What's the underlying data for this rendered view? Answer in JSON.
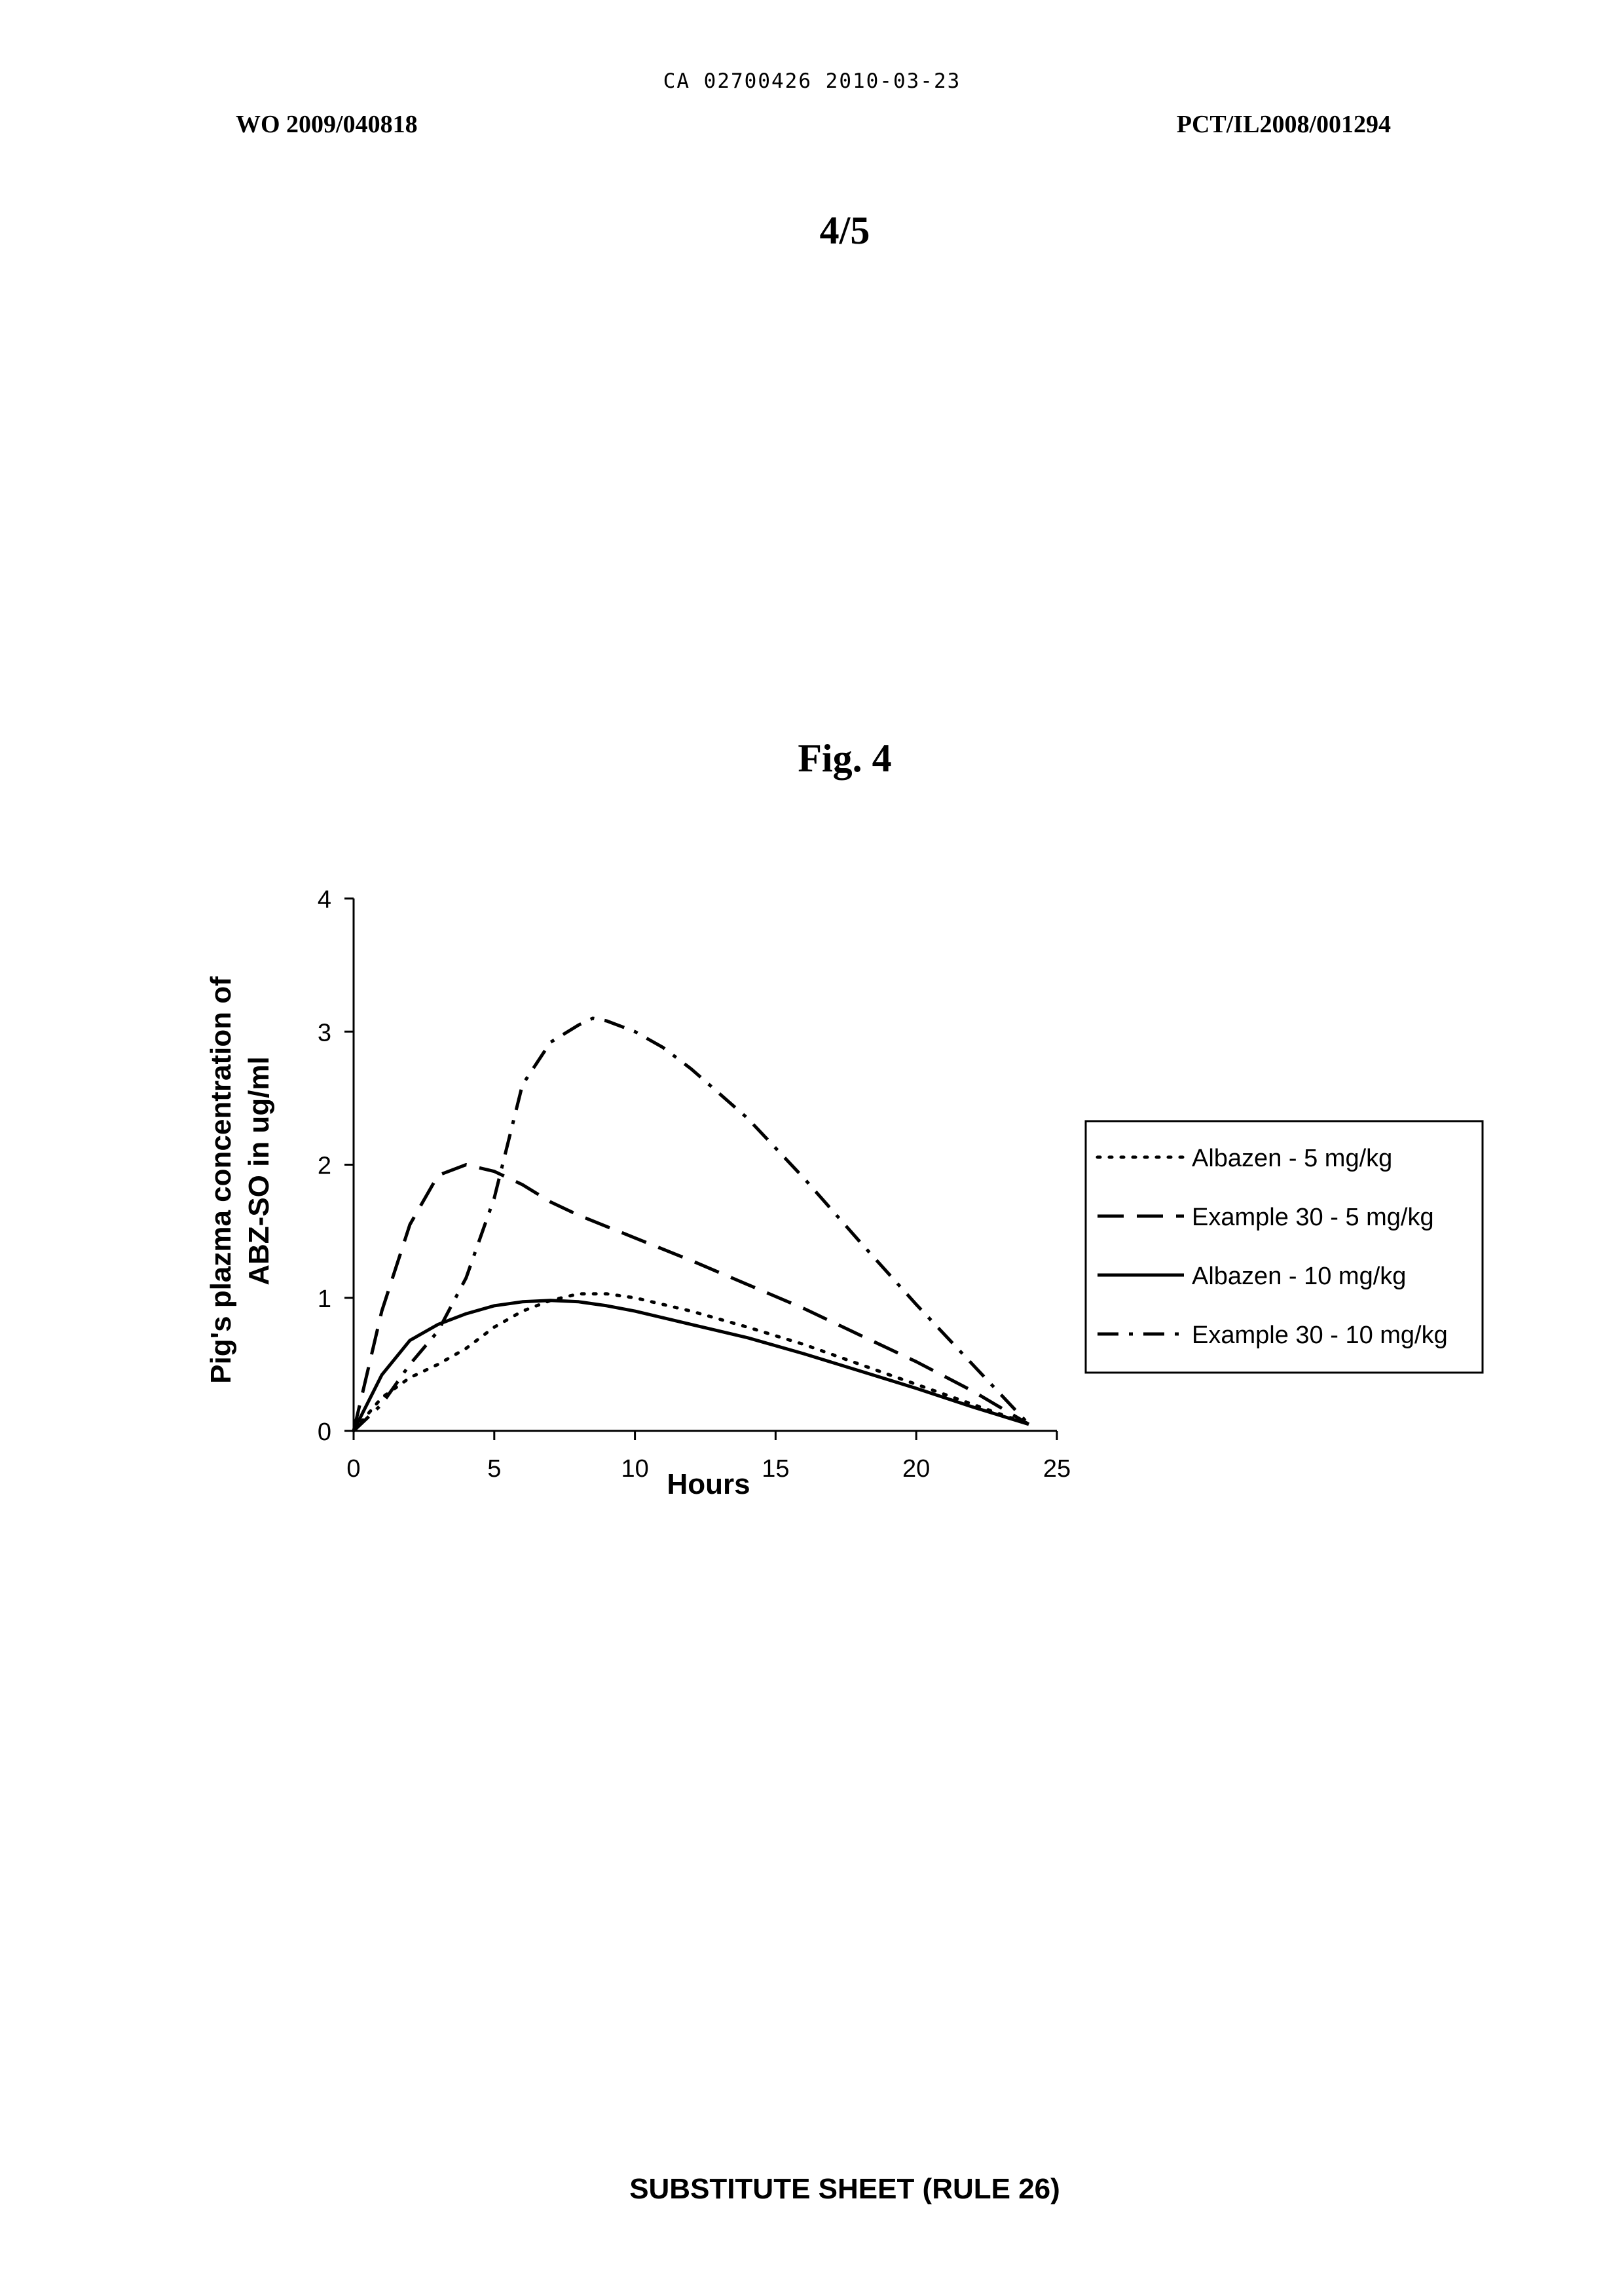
{
  "header": {
    "ca_number": "CA 02700426 2010-03-23",
    "wo_number": "WO 2009/040818",
    "pct_number": "PCT/IL2008/001294",
    "sheet_number": "4/5"
  },
  "figure": {
    "title": "Fig. 4"
  },
  "footer": {
    "text": "SUBSTITUTE SHEET (RULE 26)"
  },
  "colors": {
    "ink": "#000000",
    "paper": "#ffffff"
  },
  "chart_data": {
    "type": "line",
    "title": "",
    "xlabel": "Hours",
    "ylabel_lines": [
      "Pig's plazma concentration of",
      "ABZ-SO in ug/ml"
    ],
    "xlim": [
      0,
      25
    ],
    "ylim": [
      0,
      4
    ],
    "x_ticks": [
      0,
      5,
      10,
      15,
      20,
      25
    ],
    "y_ticks": [
      0,
      1,
      2,
      3,
      4
    ],
    "grid": false,
    "legend_position": "right",
    "series": [
      {
        "name": "Albazen - 5 mg/kg",
        "style": "dotted",
        "x": [
          0,
          1,
          2,
          3,
          4,
          5,
          6,
          7,
          8,
          9,
          10,
          12,
          14,
          16,
          18,
          20,
          22,
          24
        ],
        "y": [
          0,
          0.25,
          0.4,
          0.5,
          0.62,
          0.78,
          0.9,
          0.98,
          1.03,
          1.03,
          1.0,
          0.9,
          0.78,
          0.65,
          0.5,
          0.35,
          0.2,
          0.05
        ]
      },
      {
        "name": "Example 30 - 5 mg/kg",
        "style": "dashed",
        "x": [
          0,
          1,
          2,
          3,
          4,
          5,
          6,
          7,
          8,
          10,
          12,
          14,
          16,
          18,
          20,
          22,
          24
        ],
        "y": [
          0,
          0.9,
          1.55,
          1.92,
          2.0,
          1.95,
          1.85,
          1.72,
          1.62,
          1.45,
          1.28,
          1.1,
          0.92,
          0.72,
          0.52,
          0.3,
          0.05
        ]
      },
      {
        "name": "Albazen - 10 mg/kg",
        "style": "solid",
        "x": [
          0,
          1,
          2,
          3,
          4,
          5,
          6,
          7,
          8,
          9,
          10,
          12,
          14,
          16,
          18,
          20,
          22,
          24
        ],
        "y": [
          0,
          0.42,
          0.68,
          0.8,
          0.88,
          0.94,
          0.97,
          0.98,
          0.97,
          0.94,
          0.9,
          0.8,
          0.7,
          0.58,
          0.45,
          0.32,
          0.18,
          0.05
        ]
      },
      {
        "name": "Example 30 - 10 mg/kg",
        "style": "dash-dot",
        "x": [
          0,
          1,
          2,
          3,
          4,
          5,
          6,
          7,
          8,
          8.5,
          9,
          10,
          11,
          12,
          14,
          16,
          18,
          20,
          22,
          24
        ],
        "y": [
          0,
          0.2,
          0.5,
          0.75,
          1.15,
          1.75,
          2.6,
          2.92,
          3.05,
          3.1,
          3.08,
          3.0,
          2.88,
          2.72,
          2.35,
          1.9,
          1.42,
          0.95,
          0.5,
          0.05
        ]
      }
    ]
  }
}
